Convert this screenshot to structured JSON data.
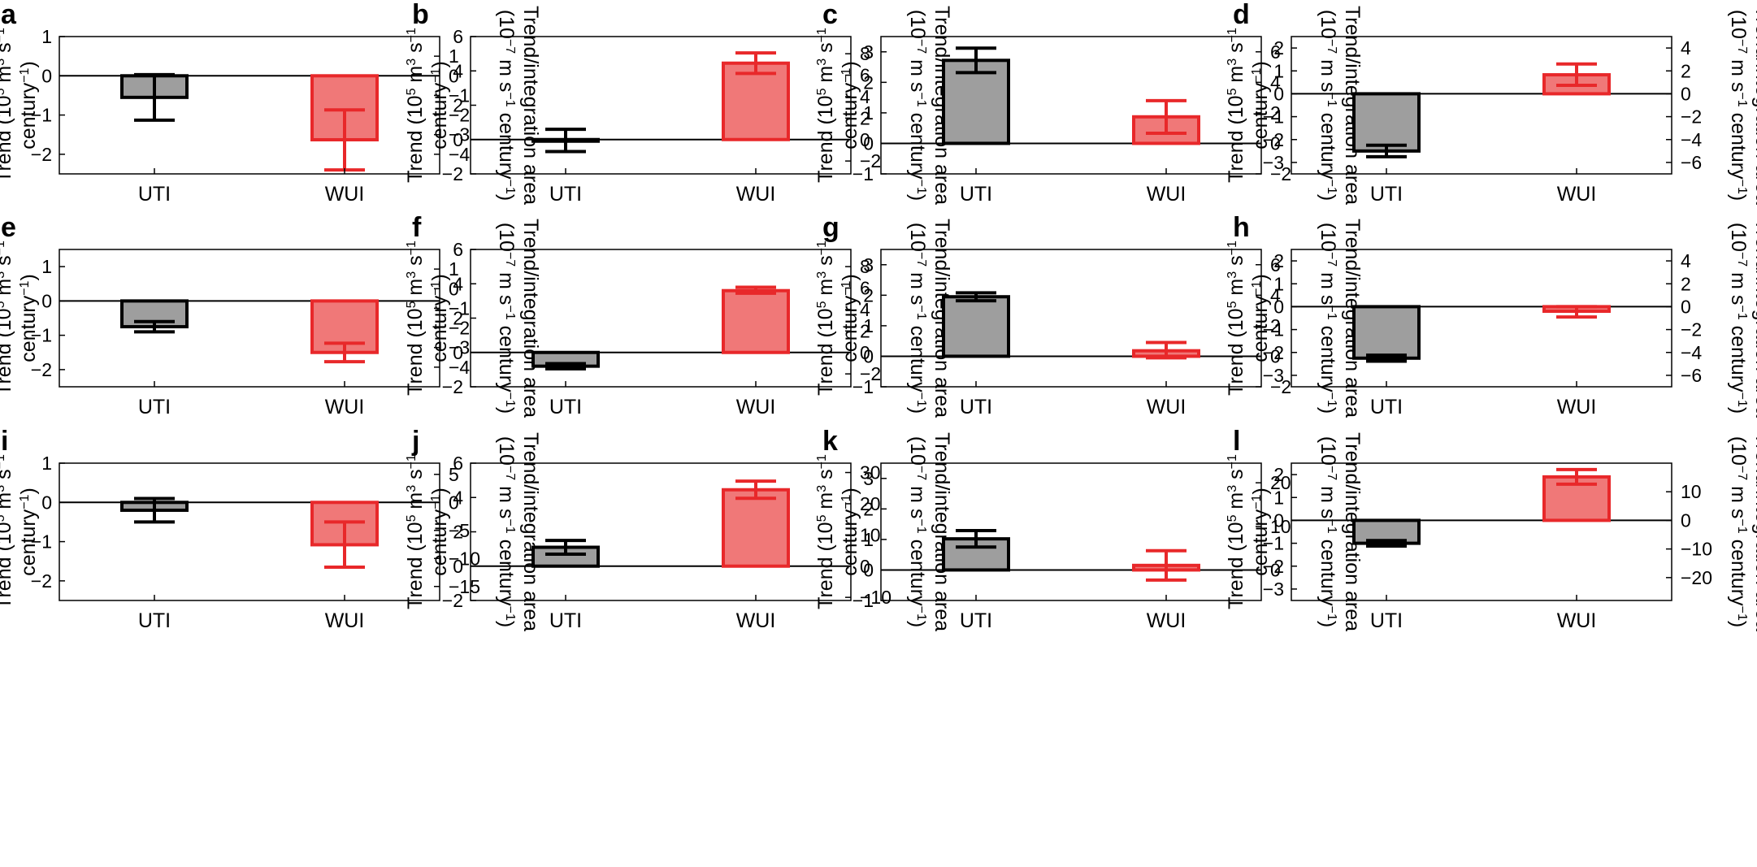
{
  "figure": {
    "y_label_line1": "Trend (10",
    "y_label_exp": "5",
    "y_label_mid": " m",
    "y_label_exp2": "3",
    "y_label_mid2": " s",
    "y_label_exp3": "−1",
    "y_label_line2": "century",
    "y_label_line2_exp": "−1",
    "y_label_line2_end": ")",
    "y2_label_line1": "Trend/integration area",
    "y2_label_line2a": "(10",
    "y2_label_line2_exp": "−7",
    "y2_label_line2b": " m s",
    "y2_label_line2_exp2": "−1",
    "y2_label_line2c": " century",
    "y2_label_line2_exp3": "−1",
    "y2_label_line2d": ")"
  },
  "colors": {
    "uti_fill": "#9e9e9e",
    "uti_edge": "#000000",
    "wui_fill": "#f07878",
    "wui_edge": "#e8282a",
    "zero_line": "#000000"
  },
  "chart_data": [
    {
      "panel": "a",
      "type": "bar",
      "categories": [
        "UTI",
        "WUI"
      ],
      "values": [
        -0.55,
        -1.63
      ],
      "err_low": [
        -1.13,
        -2.4
      ],
      "err_high": [
        0.03,
        -0.87
      ],
      "ylim": [
        -2.5,
        1.0
      ],
      "yticks": [
        -2,
        -1,
        0,
        1
      ],
      "y2lim": [
        -5.0,
        2.0
      ],
      "y2ticks": [
        -4,
        -3,
        -2,
        -1,
        0,
        1
      ]
    },
    {
      "panel": "b",
      "type": "bar",
      "categories": [
        "UTI",
        "WUI"
      ],
      "values": [
        0.0,
        4.45
      ],
      "err_low": [
        -0.7,
        3.85
      ],
      "err_high": [
        0.6,
        5.05
      ],
      "ylim": [
        -2.0,
        6.0
      ],
      "yticks": [
        -2,
        0,
        2,
        4,
        6
      ],
      "y2lim": [
        -3.2,
        9.6
      ],
      "y2ticks": [
        -2,
        0,
        2,
        4,
        6,
        8
      ]
    },
    {
      "panel": "c",
      "type": "bar",
      "categories": [
        "UTI",
        "WUI"
      ],
      "values": [
        2.72,
        0.87
      ],
      "err_low": [
        2.32,
        0.33
      ],
      "err_high": [
        3.12,
        1.4
      ],
      "ylim": [
        -1.0,
        3.5
      ],
      "yticks": [
        -1,
        0,
        1,
        2,
        3
      ],
      "y2lim": [
        -2.0,
        7.0
      ],
      "y2ticks": [
        -2,
        0,
        2,
        4,
        6
      ]
    },
    {
      "panel": "d",
      "type": "bar",
      "categories": [
        "UTI",
        "WUI"
      ],
      "values": [
        -2.5,
        0.83
      ],
      "err_low": [
        -2.75,
        0.37
      ],
      "err_high": [
        -2.25,
        1.3
      ],
      "ylim": [
        -3.5,
        2.5
      ],
      "yticks": [
        -3,
        -2,
        -1,
        0,
        1,
        2
      ],
      "y2lim": [
        -7.0,
        5.0
      ],
      "y2ticks": [
        -6,
        -4,
        -2,
        0,
        2,
        4
      ]
    },
    {
      "panel": "e",
      "type": "bar",
      "categories": [
        "UTI",
        "WUI"
      ],
      "values": [
        -0.75,
        -1.5
      ],
      "err_low": [
        -0.9,
        -1.77
      ],
      "err_high": [
        -0.6,
        -1.23
      ],
      "ylim": [
        -2.5,
        1.5
      ],
      "yticks": [
        -2,
        -1,
        0,
        1
      ],
      "y2lim": [
        -5.0,
        2.0
      ],
      "y2ticks": [
        -4,
        -3,
        -2,
        -1,
        0,
        1
      ]
    },
    {
      "panel": "f",
      "type": "bar",
      "categories": [
        "UTI",
        "WUI"
      ],
      "values": [
        -0.8,
        3.6
      ],
      "err_low": [
        -0.95,
        3.45
      ],
      "err_high": [
        -0.65,
        3.8
      ],
      "ylim": [
        -2.0,
        6.0
      ],
      "yticks": [
        -2,
        0,
        2,
        4,
        6
      ],
      "y2lim": [
        -3.2,
        9.6
      ],
      "y2ticks": [
        -2,
        0,
        2,
        4,
        6,
        8
      ]
    },
    {
      "panel": "g",
      "type": "bar",
      "categories": [
        "UTI",
        "WUI"
      ],
      "values": [
        1.95,
        0.18
      ],
      "err_low": [
        1.82,
        -0.05
      ],
      "err_high": [
        2.08,
        0.45
      ],
      "ylim": [
        -1.0,
        3.5
      ],
      "yticks": [
        -1,
        0,
        1,
        2,
        3
      ],
      "y2lim": [
        -2.0,
        7.0
      ],
      "y2ticks": [
        -2,
        0,
        2,
        4,
        6
      ]
    },
    {
      "panel": "h",
      "type": "bar",
      "categories": [
        "UTI",
        "WUI"
      ],
      "values": [
        -2.25,
        -0.2
      ],
      "err_low": [
        -2.38,
        -0.45
      ],
      "err_high": [
        -2.12,
        0.0
      ],
      "ylim": [
        -3.5,
        2.5
      ],
      "yticks": [
        -3,
        -2,
        -1,
        0,
        1,
        2
      ],
      "y2lim": [
        -7.0,
        5.0
      ],
      "y2ticks": [
        -6,
        -4,
        -2,
        0,
        2,
        4
      ]
    },
    {
      "panel": "i",
      "type": "bar",
      "categories": [
        "UTI",
        "WUI"
      ],
      "values": [
        -0.2,
        -1.08
      ],
      "err_low": [
        -0.5,
        -1.65
      ],
      "err_high": [
        0.1,
        -0.5
      ],
      "ylim": [
        -2.5,
        1.0
      ],
      "yticks": [
        -2,
        -1,
        0,
        1
      ],
      "y2lim": [
        -17.5,
        7.0
      ],
      "y2ticks": [
        -15,
        -10,
        -5,
        0,
        5
      ]
    },
    {
      "panel": "j",
      "type": "bar",
      "categories": [
        "UTI",
        "WUI"
      ],
      "values": [
        1.1,
        4.45
      ],
      "err_low": [
        0.7,
        3.95
      ],
      "err_high": [
        1.5,
        4.95
      ],
      "ylim": [
        -2.0,
        6.0
      ],
      "yticks": [
        -2,
        0,
        2,
        4,
        6
      ],
      "y2lim": [
        -11.0,
        33.0
      ],
      "y2ticks": [
        -10,
        0,
        10,
        20,
        30
      ]
    },
    {
      "panel": "k",
      "type": "bar",
      "categories": [
        "UTI",
        "WUI"
      ],
      "values": [
        1.02,
        0.15
      ],
      "err_low": [
        0.75,
        -0.33
      ],
      "err_high": [
        1.29,
        0.63
      ],
      "ylim": [
        -1.0,
        3.5
      ],
      "yticks": [
        -1,
        0,
        1,
        2,
        3
      ],
      "y2lim": [
        -7.0,
        24.5
      ],
      "y2ticks": [
        0,
        10,
        20
      ]
    },
    {
      "panel": "l",
      "type": "bar",
      "categories": [
        "UTI",
        "WUI"
      ],
      "values": [
        -1.0,
        1.9
      ],
      "err_low": [
        -1.12,
        1.58
      ],
      "err_high": [
        -0.88,
        2.22
      ],
      "ylim": [
        -3.5,
        2.5
      ],
      "yticks": [
        -3,
        -2,
        -1,
        0,
        1,
        2
      ],
      "y2lim": [
        -28.0,
        20.0
      ],
      "y2ticks": [
        -20,
        -10,
        0,
        10
      ]
    }
  ]
}
